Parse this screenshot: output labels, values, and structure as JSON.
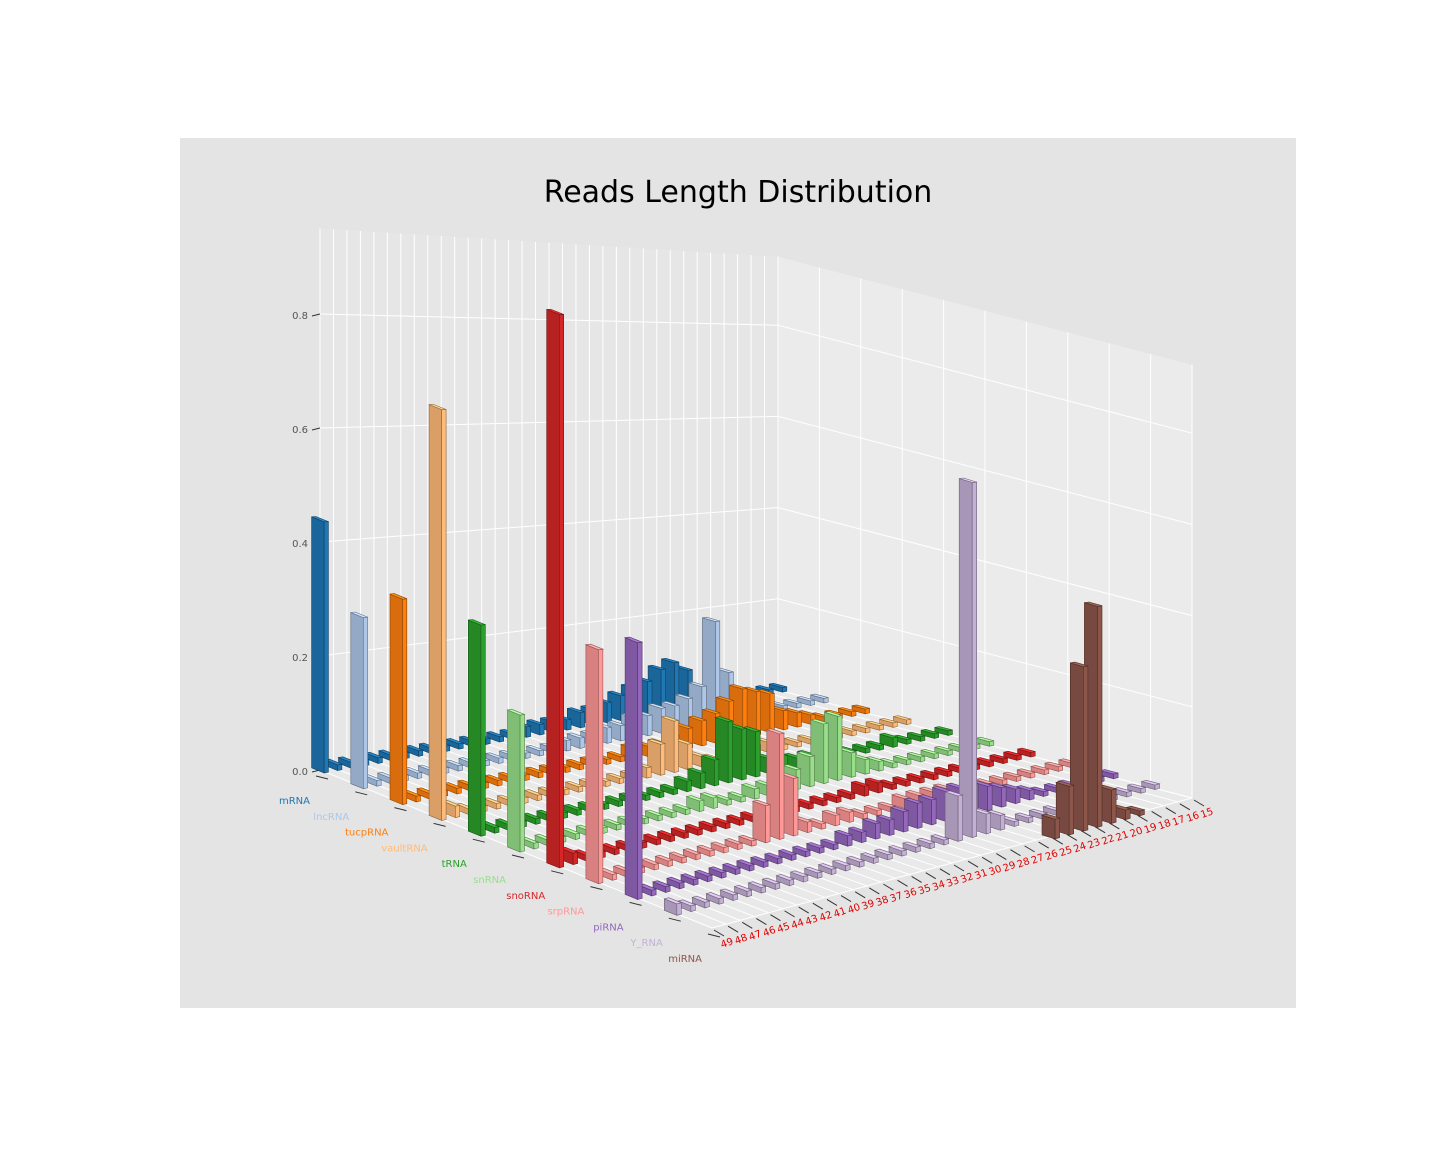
{
  "chart_data": {
    "type": "bar3d",
    "title": "Reads Length Distribution",
    "xlabel": "",
    "ylabel": "",
    "zlabel": "",
    "grid": true,
    "x_ticks": [
      49,
      48,
      47,
      46,
      45,
      44,
      43,
      42,
      41,
      40,
      39,
      38,
      37,
      36,
      35,
      34,
      33,
      32,
      31,
      30,
      29,
      28,
      27,
      26,
      25,
      24,
      23,
      22,
      21,
      20,
      19,
      18,
      17,
      16,
      15
    ],
    "x_tick_color": "#e00000",
    "z_ticks": [
      0.0,
      0.2,
      0.4,
      0.6,
      0.8
    ],
    "zlim": [
      0,
      0.95
    ],
    "series": [
      {
        "name": "mRNA",
        "color": "#1f77b4",
        "values": {
          "49": 0.44,
          "48": 0.01,
          "47": 0.01,
          "46": 0.01,
          "45": 0.01,
          "44": 0.01,
          "43": 0.01,
          "42": 0.01,
          "41": 0.01,
          "40": 0.01,
          "39": 0.01,
          "38": 0.01,
          "37": 0.01,
          "36": 0.01,
          "35": 0.01,
          "34": 0.02,
          "33": 0.02,
          "32": 0.02,
          "31": 0.02,
          "30": 0.03,
          "29": 0.03,
          "28": 0.04,
          "27": 0.05,
          "26": 0.06,
          "25": 0.07,
          "24": 0.09,
          "23": 0.1,
          "22": 0.08,
          "21": 0.03,
          "20": 0.02,
          "19": 0.02,
          "18": 0.01,
          "17": 0.01,
          "16": 0.01,
          "15": 0.01
        }
      },
      {
        "name": "lncRNA",
        "color": "#aec7e8",
        "values": {
          "49": 0.3,
          "48": 0.01,
          "47": 0.01,
          "46": 0.01,
          "45": 0.01,
          "44": 0.01,
          "43": 0.01,
          "42": 0.01,
          "41": 0.01,
          "40": 0.01,
          "39": 0.01,
          "38": 0.01,
          "37": 0.01,
          "36": 0.01,
          "35": 0.01,
          "34": 0.02,
          "33": 0.02,
          "32": 0.02,
          "31": 0.03,
          "30": 0.03,
          "29": 0.04,
          "28": 0.04,
          "27": 0.05,
          "26": 0.05,
          "25": 0.06,
          "24": 0.08,
          "23": 0.21,
          "22": 0.1,
          "21": 0.05,
          "20": 0.03,
          "19": 0.02,
          "18": 0.01,
          "17": 0.01,
          "16": 0.01,
          "15": 0.01
        }
      },
      {
        "name": "tucpRNA",
        "color": "#ff7f0e",
        "values": {
          "49": 0.36,
          "48": 0.01,
          "47": 0.01,
          "46": 0.01,
          "45": 0.01,
          "44": 0.01,
          "43": 0.01,
          "42": 0.01,
          "41": 0.01,
          "40": 0.01,
          "39": 0.01,
          "38": 0.01,
          "37": 0.01,
          "36": 0.01,
          "35": 0.01,
          "34": 0.01,
          "33": 0.01,
          "32": 0.02,
          "31": 0.02,
          "30": 0.02,
          "29": 0.03,
          "28": 0.04,
          "27": 0.05,
          "26": 0.06,
          "25": 0.08,
          "24": 0.1,
          "23": 0.09,
          "22": 0.08,
          "21": 0.04,
          "20": 0.03,
          "19": 0.02,
          "18": 0.01,
          "17": 0.01,
          "16": 0.01,
          "15": 0.01
        }
      },
      {
        "name": "vaultRNA",
        "color": "#ffbb78",
        "values": {
          "49": 0.72,
          "48": 0.02,
          "47": 0.01,
          "46": 0.01,
          "45": 0.01,
          "44": 0.01,
          "43": 0.01,
          "42": 0.01,
          "41": 0.01,
          "40": 0.01,
          "39": 0.01,
          "38": 0.01,
          "37": 0.01,
          "36": 0.01,
          "35": 0.01,
          "34": 0.02,
          "33": 0.06,
          "32": 0.1,
          "31": 0.05,
          "30": 0.02,
          "29": 0.01,
          "28": 0.01,
          "27": 0.01,
          "26": 0.02,
          "25": 0.02,
          "24": 0.01,
          "23": 0.01,
          "22": 0.01,
          "21": 0.01,
          "20": 0.01,
          "19": 0.01,
          "18": 0.01,
          "17": 0.01,
          "16": 0.01,
          "15": 0.01
        }
      },
      {
        "name": "tRNA",
        "color": "#2ca02c",
        "values": {
          "49": 0.37,
          "48": 0.01,
          "47": 0.01,
          "46": 0.01,
          "45": 0.01,
          "44": 0.01,
          "43": 0.01,
          "42": 0.01,
          "41": 0.01,
          "40": 0.01,
          "39": 0.01,
          "38": 0.01,
          "37": 0.01,
          "36": 0.01,
          "35": 0.01,
          "34": 0.02,
          "33": 0.03,
          "32": 0.05,
          "31": 0.12,
          "30": 0.1,
          "29": 0.09,
          "28": 0.03,
          "27": 0.03,
          "26": 0.02,
          "25": 0.02,
          "24": 0.02,
          "23": 0.01,
          "22": 0.01,
          "21": 0.01,
          "20": 0.01,
          "19": 0.02,
          "18": 0.01,
          "17": 0.01,
          "16": 0.01,
          "15": 0.01
        }
      },
      {
        "name": "snRNA",
        "color": "#98df8a",
        "values": {
          "49": 0.24,
          "48": 0.01,
          "47": 0.01,
          "46": 0.01,
          "45": 0.01,
          "44": 0.01,
          "43": 0.01,
          "42": 0.01,
          "41": 0.01,
          "40": 0.01,
          "39": 0.01,
          "38": 0.01,
          "37": 0.01,
          "36": 0.02,
          "35": 0.02,
          "34": 0.01,
          "33": 0.01,
          "32": 0.02,
          "31": 0.02,
          "30": 0.03,
          "29": 0.04,
          "28": 0.06,
          "27": 0.12,
          "26": 0.13,
          "25": 0.05,
          "24": 0.03,
          "23": 0.02,
          "22": 0.01,
          "21": 0.01,
          "20": 0.01,
          "19": 0.01,
          "18": 0.01,
          "17": 0.01,
          "16": 0.01,
          "15": 0.01
        }
      },
      {
        "name": "snoRNA",
        "color": "#d62728",
        "values": {
          "49": 0.97,
          "48": 0.02,
          "47": 0.01,
          "46": 0.01,
          "45": 0.01,
          "44": 0.01,
          "43": 0.01,
          "42": 0.01,
          "41": 0.01,
          "40": 0.01,
          "39": 0.01,
          "38": 0.01,
          "37": 0.01,
          "36": 0.01,
          "35": 0.01,
          "34": 0.01,
          "33": 0.01,
          "32": 0.01,
          "31": 0.01,
          "30": 0.01,
          "29": 0.01,
          "28": 0.01,
          "27": 0.02,
          "26": 0.02,
          "25": 0.01,
          "24": 0.01,
          "23": 0.01,
          "22": 0.01,
          "21": 0.01,
          "20": 0.01,
          "19": 0.01,
          "18": 0.01,
          "17": 0.01,
          "16": 0.01,
          "15": 0.01
        }
      },
      {
        "name": "srpRNA",
        "color": "#ff9896",
        "values": {
          "49": 0.41,
          "48": 0.01,
          "47": 0.01,
          "46": 0.01,
          "45": 0.01,
          "44": 0.01,
          "43": 0.01,
          "42": 0.01,
          "41": 0.01,
          "40": 0.01,
          "39": 0.01,
          "38": 0.01,
          "37": 0.07,
          "36": 0.2,
          "35": 0.11,
          "34": 0.02,
          "33": 0.01,
          "32": 0.02,
          "31": 0.02,
          "30": 0.01,
          "29": 0.01,
          "28": 0.01,
          "27": 0.02,
          "26": 0.02,
          "25": 0.02,
          "24": 0.02,
          "23": 0.01,
          "22": 0.01,
          "21": 0.01,
          "20": 0.01,
          "19": 0.01,
          "18": 0.01,
          "17": 0.01,
          "16": 0.01,
          "15": 0.01
        }
      },
      {
        "name": "piRNA",
        "color": "#9467bd",
        "values": {
          "49": 0.45,
          "48": 0.01,
          "47": 0.01,
          "46": 0.01,
          "45": 0.01,
          "44": 0.01,
          "43": 0.01,
          "42": 0.01,
          "41": 0.01,
          "40": 0.01,
          "39": 0.01,
          "38": 0.01,
          "37": 0.01,
          "36": 0.01,
          "35": 0.01,
          "34": 0.02,
          "33": 0.02,
          "32": 0.03,
          "31": 0.03,
          "30": 0.04,
          "29": 0.05,
          "28": 0.05,
          "27": 0.06,
          "26": 0.06,
          "25": 0.06,
          "24": 0.05,
          "23": 0.04,
          "22": 0.03,
          "21": 0.02,
          "20": 0.01,
          "19": 0.01,
          "18": 0.01,
          "17": 0.01,
          "16": 0.01,
          "15": 0.01
        }
      },
      {
        "name": "Y_RNA",
        "color": "#c5b0d5",
        "values": {
          "49": 0.02,
          "48": 0.01,
          "47": 0.01,
          "46": 0.01,
          "45": 0.01,
          "44": 0.01,
          "43": 0.01,
          "42": 0.01,
          "41": 0.01,
          "40": 0.01,
          "39": 0.01,
          "38": 0.01,
          "37": 0.01,
          "36": 0.01,
          "35": 0.01,
          "34": 0.01,
          "33": 0.01,
          "32": 0.01,
          "31": 0.01,
          "30": 0.01,
          "29": 0.09,
          "28": 0.71,
          "27": 0.04,
          "26": 0.03,
          "25": 0.01,
          "24": 0.01,
          "23": 0.01,
          "22": 0.01,
          "21": 0.01,
          "20": 0.01,
          "19": 0.01,
          "18": 0.01,
          "17": 0.01,
          "16": 0.01,
          "15": 0.01
        }
      },
      {
        "name": "miRNA",
        "color": "#8c564b",
        "values": {
          "49": 0.0,
          "48": 0.0,
          "47": 0.0,
          "46": 0.0,
          "45": 0.0,
          "44": 0.0,
          "43": 0.0,
          "42": 0.0,
          "41": 0.0,
          "40": 0.0,
          "39": 0.0,
          "38": 0.0,
          "37": 0.0,
          "36": 0.0,
          "35": 0.0,
          "34": 0.0,
          "33": 0.0,
          "32": 0.0,
          "31": 0.0,
          "30": 0.0,
          "29": 0.0,
          "28": 0.0,
          "27": 0.0,
          "26": 0.0,
          "25": 0.04,
          "24": 0.1,
          "23": 0.34,
          "22": 0.46,
          "21": 0.07,
          "20": 0.02,
          "19": 0.01,
          "18": 0.0,
          "17": 0.0,
          "16": 0.0,
          "15": 0.0
        }
      }
    ]
  }
}
